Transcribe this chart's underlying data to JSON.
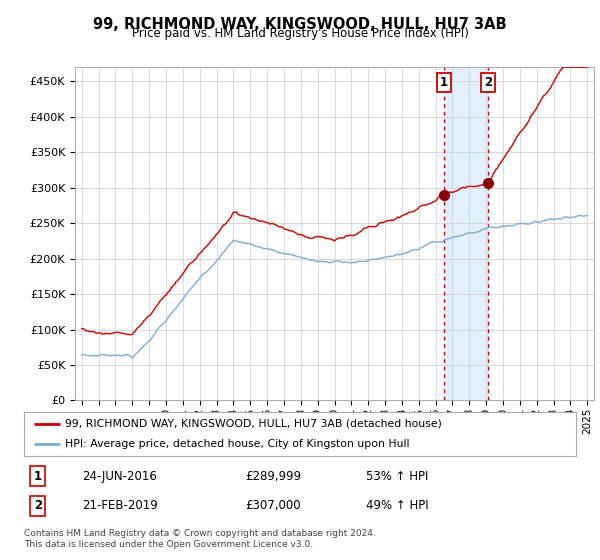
{
  "title": "99, RICHMOND WAY, KINGSWOOD, HULL, HU7 3AB",
  "subtitle": "Price paid vs. HM Land Registry's House Price Index (HPI)",
  "ylabel_ticks": [
    "£0",
    "£50K",
    "£100K",
    "£150K",
    "£200K",
    "£250K",
    "£300K",
    "£350K",
    "£400K",
    "£450K"
  ],
  "ytick_values": [
    0,
    50000,
    100000,
    150000,
    200000,
    250000,
    300000,
    350000,
    400000,
    450000
  ],
  "ylim": [
    0,
    470000
  ],
  "xlim_start": 1994.6,
  "xlim_end": 2025.4,
  "sale1_x": 2016.48,
  "sale1_y": 289999,
  "sale2_x": 2019.13,
  "sale2_y": 307000,
  "red_line_color": "#cc0000",
  "blue_line_color": "#7aaed6",
  "sale_dot_color": "#8b0000",
  "highlight_bg_color": "#ddeeff",
  "vline_color": "#cc0000",
  "legend_line1": "99, RICHMOND WAY, KINGSWOOD, HULL, HU7 3AB (detached house)",
  "legend_line2": "HPI: Average price, detached house, City of Kingston upon Hull",
  "annotation1_date": "24-JUN-2016",
  "annotation1_price": "£289,999",
  "annotation1_hpi": "53% ↑ HPI",
  "annotation2_date": "21-FEB-2019",
  "annotation2_price": "£307,000",
  "annotation2_hpi": "49% ↑ HPI",
  "footer": "Contains HM Land Registry data © Crown copyright and database right 2024.\nThis data is licensed under the Open Government Licence v3.0.",
  "background_color": "#ffffff",
  "grid_color": "#cccccc"
}
